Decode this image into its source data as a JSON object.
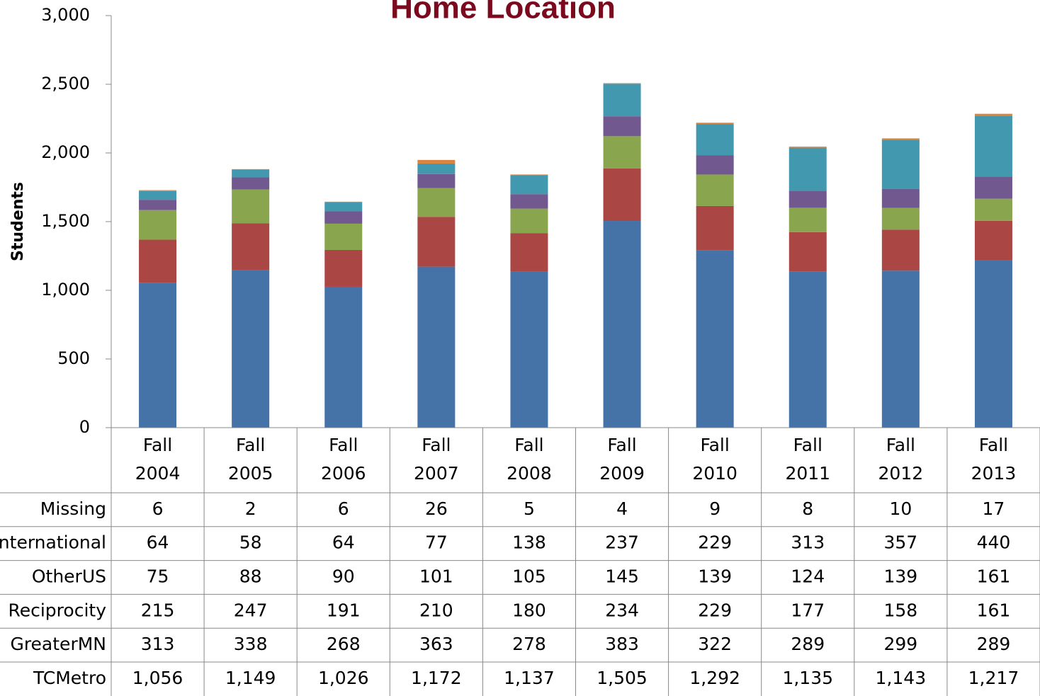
{
  "chart_data": {
    "type": "stacked_bar",
    "title": "Home Location",
    "y_label": "Students",
    "categories": [
      "Fall 2004",
      "Fall 2005",
      "Fall 2006",
      "Fall 2007",
      "Fall 2008",
      "Fall 2009",
      "Fall 2010",
      "Fall 2011",
      "Fall 2012",
      "Fall 2013"
    ],
    "series": [
      {
        "name": "TCMetro",
        "color": "#4572a7",
        "values": [
          1056,
          1149,
          1026,
          1172,
          1137,
          1505,
          1292,
          1135,
          1143,
          1217
        ],
        "value_labels": [
          "1,056",
          "1,149",
          "1,026",
          "1,172",
          "1,137",
          "1,505",
          "1,292",
          "1,135",
          "1,143",
          "1,217"
        ]
      },
      {
        "name": "GreaterMN",
        "color": "#aa4643",
        "values": [
          313,
          338,
          268,
          363,
          278,
          383,
          322,
          289,
          299,
          289
        ]
      },
      {
        "name": "Reciprocity",
        "color": "#89a54e",
        "values": [
          215,
          247,
          191,
          210,
          180,
          234,
          229,
          177,
          158,
          161
        ]
      },
      {
        "name": "OtherUS",
        "color": "#71588f",
        "values": [
          75,
          88,
          90,
          101,
          105,
          145,
          139,
          124,
          139,
          161
        ]
      },
      {
        "name": "International",
        "color": "#4198af",
        "values": [
          64,
          58,
          64,
          77,
          138,
          237,
          229,
          313,
          357,
          440
        ]
      },
      {
        "name": "Missing",
        "color": "#db843d",
        "values": [
          6,
          2,
          6,
          26,
          5,
          4,
          9,
          8,
          10,
          17
        ]
      }
    ],
    "ylim": [
      0,
      3000
    ],
    "yticks": [
      0,
      {
        "value": 500,
        "label": "500"
      },
      {
        "value": 1000,
        "label": "1,000"
      },
      {
        "value": 1500,
        "label": "1,500"
      },
      {
        "value": 2000,
        "label": "2,000"
      },
      {
        "value": 2500,
        "label": "2,500"
      },
      {
        "value": 3000,
        "label": "3,000"
      }
    ],
    "data_table": true
  }
}
